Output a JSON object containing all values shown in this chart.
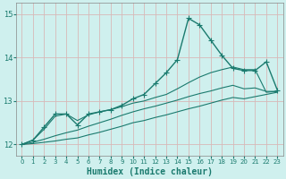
{
  "xlabel": "Humidex (Indice chaleur)",
  "bg_color": "#cff0ee",
  "grid_color": "#d8b8b8",
  "line_color": "#1a7a6e",
  "xlim": [
    -0.5,
    23.5
  ],
  "ylim": [
    11.75,
    15.25
  ],
  "yticks": [
    12,
    13,
    14,
    15
  ],
  "xticks": [
    0,
    1,
    2,
    3,
    4,
    5,
    6,
    7,
    8,
    9,
    10,
    11,
    12,
    13,
    14,
    15,
    16,
    17,
    18,
    19,
    20,
    21,
    22,
    23
  ],
  "series": [
    {
      "x": [
        0,
        1,
        2,
        3,
        4,
        5,
        6,
        7,
        8,
        9,
        10,
        11,
        12,
        13,
        14,
        15,
        16,
        17,
        18,
        19,
        20,
        21,
        22,
        23
      ],
      "y": [
        12.0,
        12.1,
        12.4,
        12.7,
        12.7,
        12.45,
        12.7,
        12.75,
        12.8,
        12.9,
        13.05,
        13.15,
        13.4,
        13.65,
        13.95,
        14.9,
        14.75,
        14.4,
        14.05,
        13.75,
        13.7,
        13.7,
        13.9,
        13.25
      ],
      "marker": "+",
      "lw": 1.0,
      "ms": 4
    },
    {
      "x": [
        0,
        1,
        2,
        3,
        4,
        5,
        6,
        7,
        8,
        9,
        10,
        11,
        12,
        13,
        14,
        15,
        16,
        17,
        18,
        19,
        20,
        21,
        22,
        23
      ],
      "y": [
        12.0,
        12.1,
        12.35,
        12.65,
        12.7,
        12.55,
        12.68,
        12.75,
        12.8,
        12.87,
        12.95,
        13.0,
        13.08,
        13.15,
        13.28,
        13.42,
        13.55,
        13.65,
        13.72,
        13.78,
        13.72,
        13.72,
        13.2,
        13.22
      ],
      "marker": null,
      "lw": 0.8,
      "ms": 0
    },
    {
      "x": [
        0,
        1,
        2,
        3,
        4,
        5,
        6,
        7,
        8,
        9,
        10,
        11,
        12,
        13,
        14,
        15,
        16,
        17,
        18,
        19,
        20,
        21,
        22,
        23
      ],
      "y": [
        12.0,
        12.05,
        12.12,
        12.2,
        12.27,
        12.33,
        12.42,
        12.5,
        12.58,
        12.67,
        12.75,
        12.82,
        12.88,
        12.95,
        13.02,
        13.1,
        13.17,
        13.23,
        13.3,
        13.36,
        13.28,
        13.3,
        13.22,
        13.22
      ],
      "marker": null,
      "lw": 0.8,
      "ms": 0
    },
    {
      "x": [
        0,
        1,
        2,
        3,
        4,
        5,
        6,
        7,
        8,
        9,
        10,
        11,
        12,
        13,
        14,
        15,
        16,
        17,
        18,
        19,
        20,
        21,
        22,
        23
      ],
      "y": [
        12.0,
        12.02,
        12.05,
        12.08,
        12.12,
        12.15,
        12.22,
        12.28,
        12.35,
        12.42,
        12.5,
        12.55,
        12.62,
        12.68,
        12.75,
        12.82,
        12.88,
        12.95,
        13.02,
        13.08,
        13.05,
        13.1,
        13.15,
        13.2
      ],
      "marker": null,
      "lw": 0.8,
      "ms": 0
    }
  ]
}
